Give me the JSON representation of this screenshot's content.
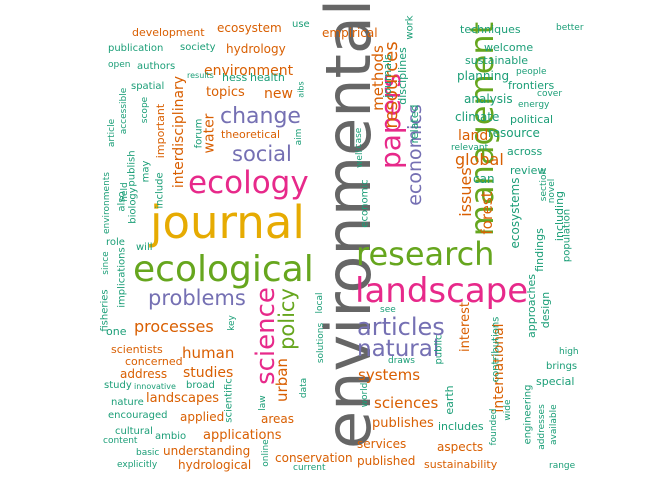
{
  "colors": {
    "c1": "#1b9e77",
    "c2": "#d95f02",
    "c3": "#7570b3",
    "c4": "#e7298a",
    "c5": "#66a61e",
    "c6": "#e6ab02",
    "c7": "#666666"
  },
  "words": [
    "environmental",
    "journal",
    "ecological",
    "ecology",
    "landscape",
    "research",
    "management",
    "papers",
    "science",
    "articles",
    "natural",
    "change",
    "social",
    "problems",
    "economics",
    "policy",
    "resources",
    "processes",
    "systems",
    "environment",
    "global",
    "issues",
    "methods",
    "forest",
    "interdisciplinary",
    "urban",
    "sciences",
    "human",
    "studies",
    "applications",
    "international",
    "water",
    "new",
    "landscapes",
    "publishes",
    "interest",
    "areas",
    "aspects",
    "conservation",
    "published",
    "understanding",
    "applied",
    "hydrological",
    "sustainability",
    "services",
    "topics",
    "hydrology",
    "ecosystem",
    "empirical",
    "development",
    "theoretical",
    "important",
    "address",
    "scientists",
    "concerned",
    "land",
    "resource",
    "analysis",
    "planning",
    "climate",
    "review",
    "related",
    "disciplines",
    "journals",
    "work",
    "techniques",
    "better",
    "welcome",
    "sustainable",
    "people",
    "frontiers",
    "cover",
    "energy",
    "political",
    "across",
    "relevant",
    "section",
    "novel",
    "population",
    "findings",
    "including",
    "design",
    "approaches",
    "engineering",
    "addresses",
    "available",
    "range",
    "high",
    "brings",
    "special",
    "wide",
    "founded",
    "includes",
    "earth",
    "contributions",
    "public",
    "draws",
    "see",
    "world",
    "solutions",
    "local",
    "data",
    "law",
    "scientific",
    "current",
    "online",
    "basic",
    "explicitly",
    "content",
    "cultural",
    "ambio",
    "nature",
    "encouraged",
    "innovative",
    "broad",
    "study",
    "key",
    "one",
    "fisheries",
    "implications",
    "role",
    "since",
    "environments",
    "will",
    "biology",
    "also",
    "may",
    "include",
    "field",
    "publish",
    "accessible",
    "article",
    "scope",
    "spatial",
    "open",
    "publication",
    "authors",
    "society",
    "results",
    "hess",
    "health",
    "forum",
    "aibs",
    "use",
    "aim",
    "well",
    "case",
    "economic",
    "ecosystems",
    "can"
  ]
}
